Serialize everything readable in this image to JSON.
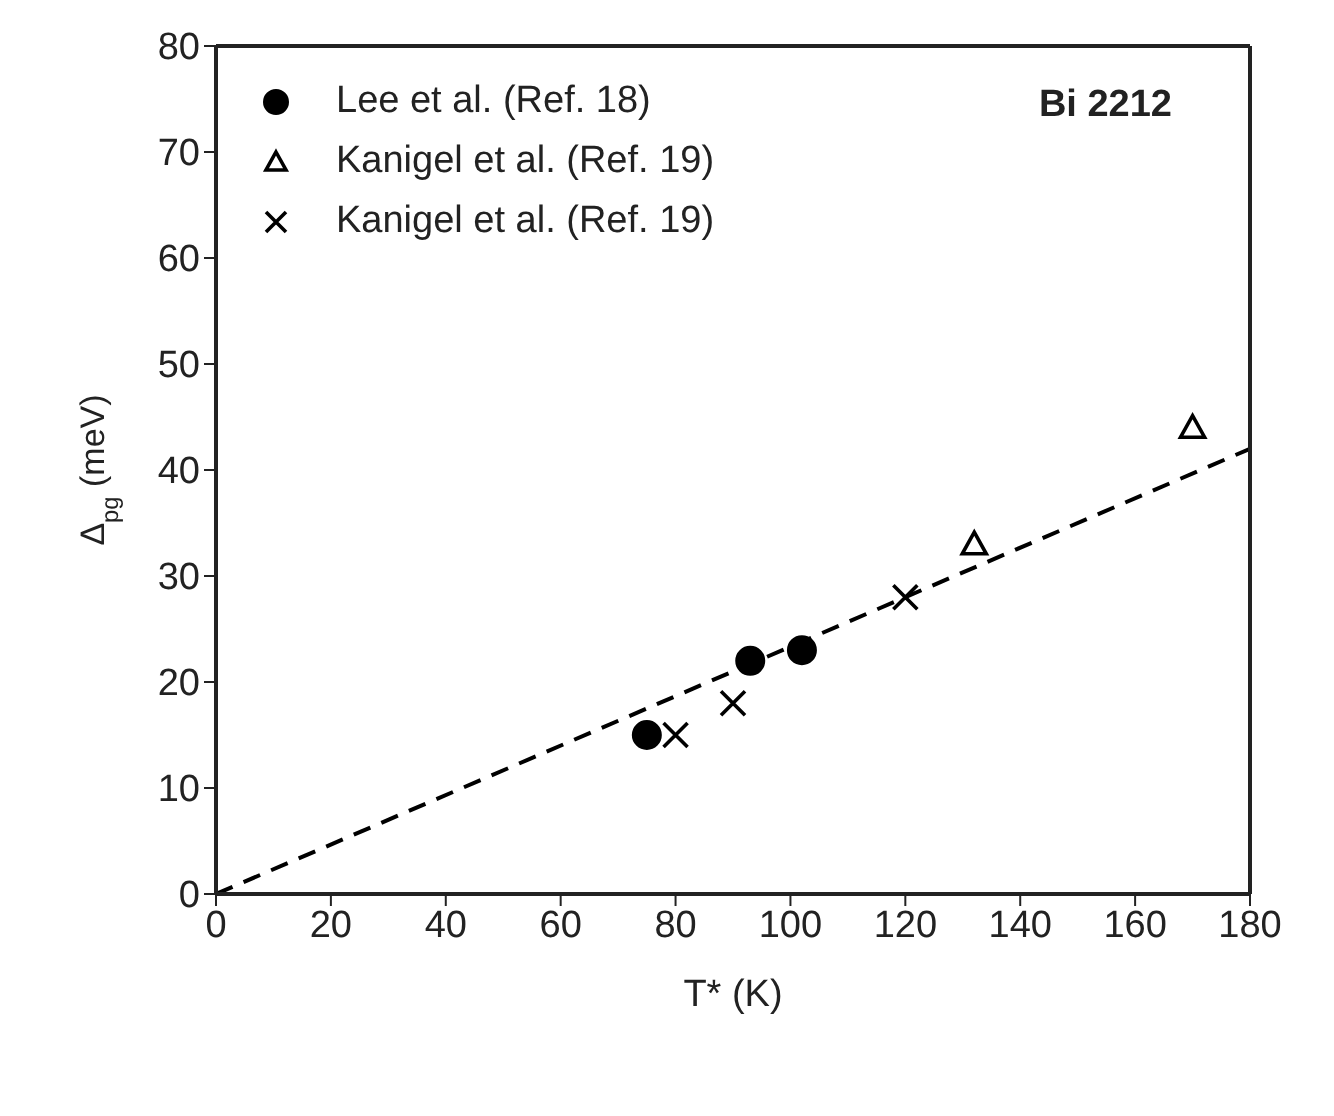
{
  "chart_data": {
    "type": "scatter",
    "xlabel": "T* (K)",
    "ylabel": "Δ$_{pg}$ (meV)",
    "xlim": [
      0,
      180
    ],
    "ylim": [
      0,
      80
    ],
    "xticks": [
      0,
      20,
      40,
      60,
      80,
      100,
      120,
      140,
      160,
      180
    ],
    "yticks": [
      0,
      10,
      20,
      30,
      40,
      50,
      60,
      70,
      80
    ],
    "legend": "top left",
    "annotations": [
      "Bi 2212"
    ],
    "series": [
      {
        "name": "Lee et al. (Ref. 18)",
        "color": "#000000",
        "marker": "circle",
        "x": [
          75,
          93,
          102
        ],
        "values": [
          15,
          22,
          23
        ]
      },
      {
        "name": "Kanigel et al. (Ref. 19)",
        "color": "#000000",
        "marker": "triangle",
        "x": [
          132,
          170
        ],
        "values": [
          33,
          44
        ]
      },
      {
        "name": "Kanigel et al. (Ref. 19)",
        "color": "#000000",
        "marker": "cross",
        "x": [
          80,
          90,
          120
        ],
        "values": [
          15,
          18,
          28
        ]
      },
      {
        "type": "line",
        "color": "#000000",
        "line_style": "dashed",
        "marker": "none",
        "x": [
          0,
          180
        ],
        "values": [
          0,
          42
        ]
      }
    ]
  }
}
